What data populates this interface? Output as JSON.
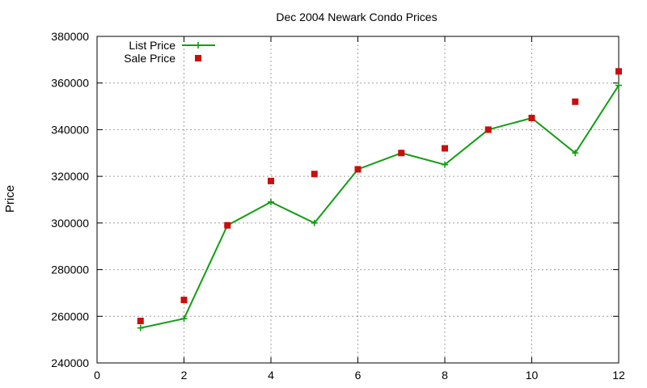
{
  "chart_data": {
    "type": "line",
    "title": "Dec 2004 Newark Condo Prices",
    "xlabel": "",
    "ylabel": "Price",
    "xlim": [
      0,
      12
    ],
    "ylim": [
      240000,
      380000
    ],
    "x_ticks": [
      0,
      2,
      4,
      6,
      8,
      10,
      12
    ],
    "y_ticks": [
      240000,
      260000,
      280000,
      300000,
      320000,
      340000,
      360000,
      380000
    ],
    "grid": true,
    "legend_position": "top-left",
    "series": [
      {
        "name": "List Price",
        "style": "line-with-plus-markers",
        "color": "#129e12",
        "x": [
          1,
          2,
          3,
          4,
          5,
          6,
          7,
          8,
          9,
          10,
          11,
          12
        ],
        "y": [
          255000,
          259000,
          299000,
          309000,
          300000,
          323000,
          330000,
          325000,
          340000,
          345000,
          330000,
          359000
        ]
      },
      {
        "name": "Sale Price",
        "style": "square-markers",
        "color": "#cc0d0d",
        "x": [
          1,
          2,
          3,
          4,
          5,
          6,
          7,
          8,
          9,
          10,
          11,
          12
        ],
        "y": [
          258000,
          267000,
          299000,
          318000,
          321000,
          323000,
          330000,
          332000,
          340000,
          345000,
          352000,
          365000
        ]
      }
    ]
  }
}
